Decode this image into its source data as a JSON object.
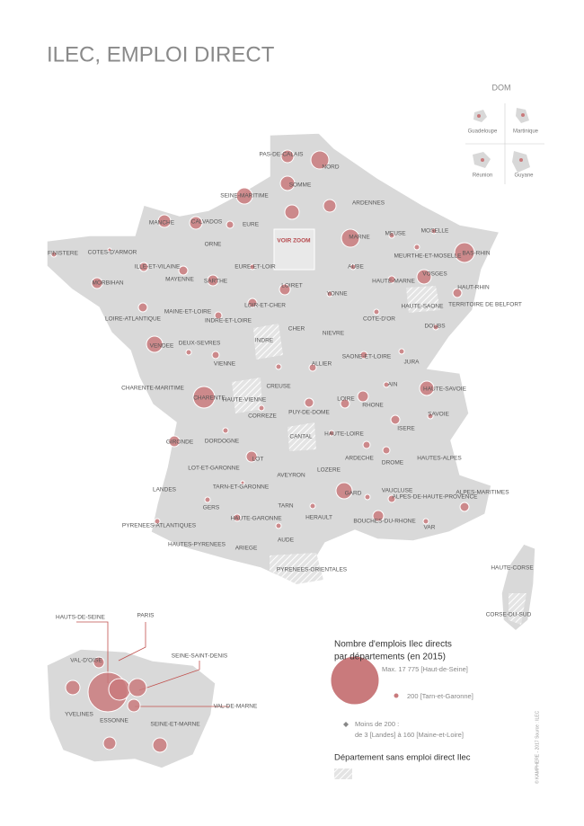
{
  "title": "ILEC, EMPLOI DIRECT",
  "dom": {
    "title": "DOM",
    "labels": [
      "Guadeloupe",
      "Martinique",
      "Réunion",
      "Guyane"
    ]
  },
  "zoom_label": "VOIR ZOOM",
  "departments": [
    "PAS-DE-CALAIS",
    "NORD",
    "SOMME",
    "SEINE-MARITIME",
    "ARDENNES",
    "MANCHE",
    "CALVADOS",
    "EURE",
    "MARNE",
    "MEUSE",
    "MOSELLE",
    "FINISTERE",
    "COTES-D'ARMOR",
    "ORNE",
    "MEURTHE-ET-MOSELLE",
    "BAS-RHIN",
    "ILLE-ET-VILAINE",
    "EURE-ET-LOIR",
    "AUBE",
    "VOSGES",
    "MORBIHAN",
    "MAYENNE",
    "SARTHE",
    "LOIRET",
    "YONNE",
    "HAUTE-MARNE",
    "HAUT-RHIN",
    "TERRITOIRE DE BELFORT",
    "LOIRE-ATLANTIQUE",
    "MAINE-ET-LOIRE",
    "INDRE-ET-LOIRE",
    "LOIR-ET-CHER",
    "HAUTE-SAONE",
    "COTE-D'OR",
    "DOUBS",
    "CHER",
    "NIEVRE",
    "INDRE",
    "VENDEE",
    "DEUX-SEVRES",
    "VIENNE",
    "ALLIER",
    "SAONE-ET-LOIRE",
    "JURA",
    "CHARENTE-MARITIME",
    "HAUTE-VIENNE",
    "CREUSE",
    "CHARENTE",
    "AIN",
    "HAUTE-SAVOIE",
    "RHONE",
    "PUY-DE-DOME",
    "LOIRE",
    "SAVOIE",
    "CORREZE",
    "ISERE",
    "HAUTE-LOIRE",
    "CANTAL",
    "GIRONDE",
    "DORDOGNE",
    "LOT",
    "ARDECHE",
    "DROME",
    "HAUTES-ALPES",
    "LOZERE",
    "LOT-ET-GARONNE",
    "AVEYRON",
    "TARN-ET-GARONNE",
    "LANDES",
    "GARD",
    "VAUCLUSE",
    "ALPES-DE-HAUTE-PROVENCE",
    "ALPES-MARITIMES",
    "GERS",
    "TARN",
    "HERAULT",
    "BOUCHES-DU-RHONE",
    "PYRENEES-ATLANTIQUES",
    "HAUTE-GARONNE",
    "VAR",
    "HAUTES-PYRENEES",
    "ARIEGE",
    "AUDE",
    "PYRENEES-ORIENTALES",
    "HAUTE-CORSE",
    "CORSE-DU-SUD"
  ],
  "idf": [
    "HAUTS-DE-SEINE",
    "PARIS",
    "SEINE-SAINT-DENIS",
    "VAL-D'OISE",
    "VAL-DE-MARNE",
    "YVELINES",
    "ESSONNE",
    "SEINE-ET-MARNE"
  ],
  "legend": {
    "title": [
      "Nombre d'emplois Ilec directs",
      "par départements (en 2015)"
    ],
    "max": "Max. 17 775 [Haut-de-Seine]",
    "mid": "200 [Tarn-et-Garonne]",
    "min": [
      "Moins de 200 :",
      "de 3 [Landes] à 160 [Maine-et-Loire]"
    ],
    "none": "Département sans emploi direct Ilec"
  },
  "credit": "© KAMPHERE - 2017 Source : ILEC"
}
